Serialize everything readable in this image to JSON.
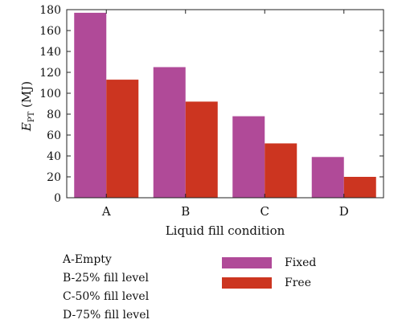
{
  "chart_data": {
    "type": "bar",
    "categories": [
      "A",
      "B",
      "C",
      "D"
    ],
    "series": [
      {
        "name": "Fixed",
        "color": "#b04a98",
        "values": [
          177,
          125,
          78,
          39
        ]
      },
      {
        "name": "Free",
        "color": "#cc3520",
        "values": [
          113,
          92,
          52,
          20
        ]
      }
    ],
    "xlabel": "Liquid fill condition",
    "ylabel_main": "E",
    "ylabel_sub": "PT",
    "ylabel_unit": " (MJ)",
    "ylim": [
      0,
      180
    ],
    "yticks": [
      0,
      20,
      40,
      60,
      80,
      100,
      120,
      140,
      160,
      180
    ],
    "legend_position": "bottom-right",
    "grid": false
  },
  "notes": [
    "A-Empty",
    "B-25% fill level",
    "C-50% fill level",
    "D-75% fill level"
  ]
}
